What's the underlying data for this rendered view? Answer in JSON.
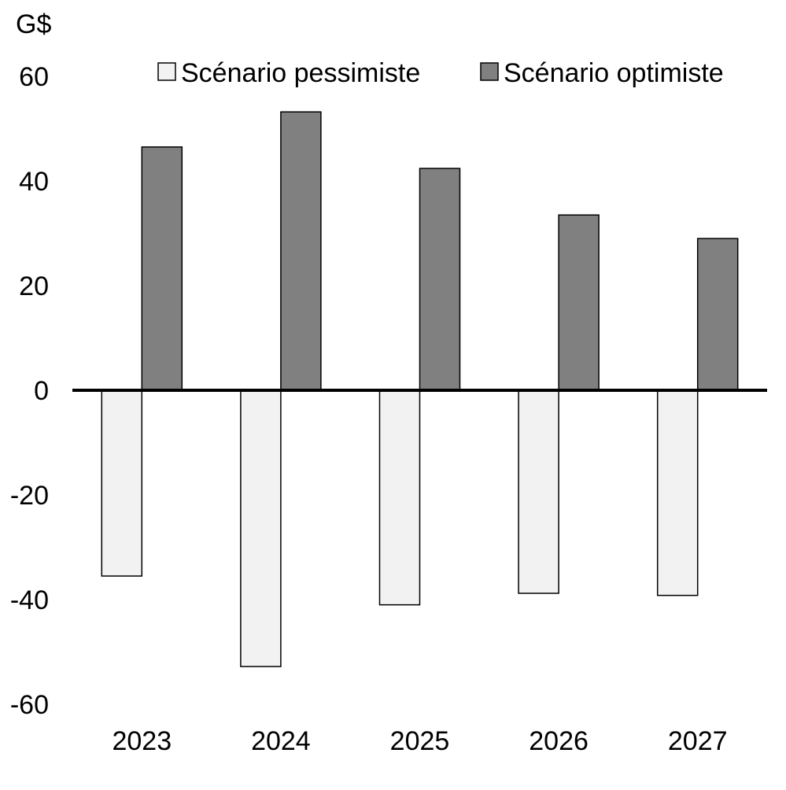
{
  "chart_data": {
    "type": "bar",
    "unit": "G$",
    "categories": [
      "2023",
      "2024",
      "2025",
      "2026",
      "2027"
    ],
    "series": [
      {
        "name": "Scénario pessimiste",
        "color": "#f2f2f2",
        "values": [
          -35.5,
          -52.8,
          -41.0,
          -38.8,
          -39.2
        ]
      },
      {
        "name": "Scénario optimiste",
        "color": "#808080",
        "values": [
          46.5,
          53.2,
          42.4,
          33.5,
          29.0
        ]
      }
    ],
    "ylim": [
      -60,
      60
    ],
    "yticks": [
      "60",
      "40",
      "20",
      "0",
      "-20",
      "-40",
      "-60"
    ],
    "ytick_values": [
      60,
      40,
      20,
      0,
      -20,
      -40,
      -60
    ],
    "grid": false,
    "legend_position": "top-right"
  }
}
